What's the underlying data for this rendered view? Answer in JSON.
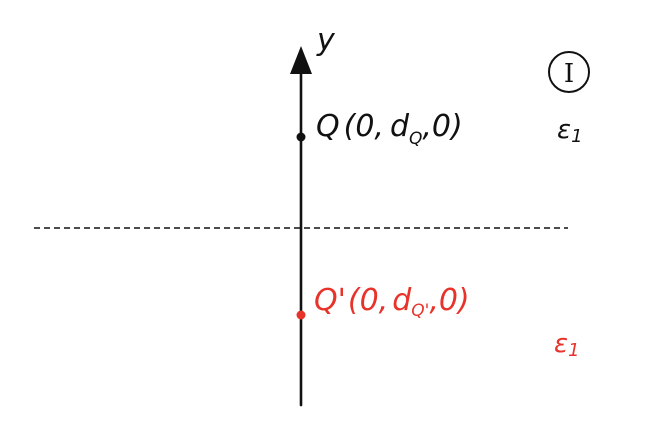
{
  "diagram": {
    "axis_label": "y",
    "case_number": "I",
    "point_q": {
      "name": "Q",
      "open": "(0,",
      "d": "d",
      "subscript": "Q",
      "close": ",0)",
      "color": "#111111"
    },
    "point_q_prime": {
      "name": "Q'",
      "open": "(0,",
      "d": "d",
      "subscript": "Q'",
      "close": ",0)",
      "color": "#e8332b"
    },
    "region_upper": {
      "symbol": "ε",
      "subscript": "1"
    },
    "region_lower": {
      "symbol": "ε",
      "subscript": "1"
    },
    "colors": {
      "ink": "#111111",
      "accent": "#e8332b"
    }
  }
}
